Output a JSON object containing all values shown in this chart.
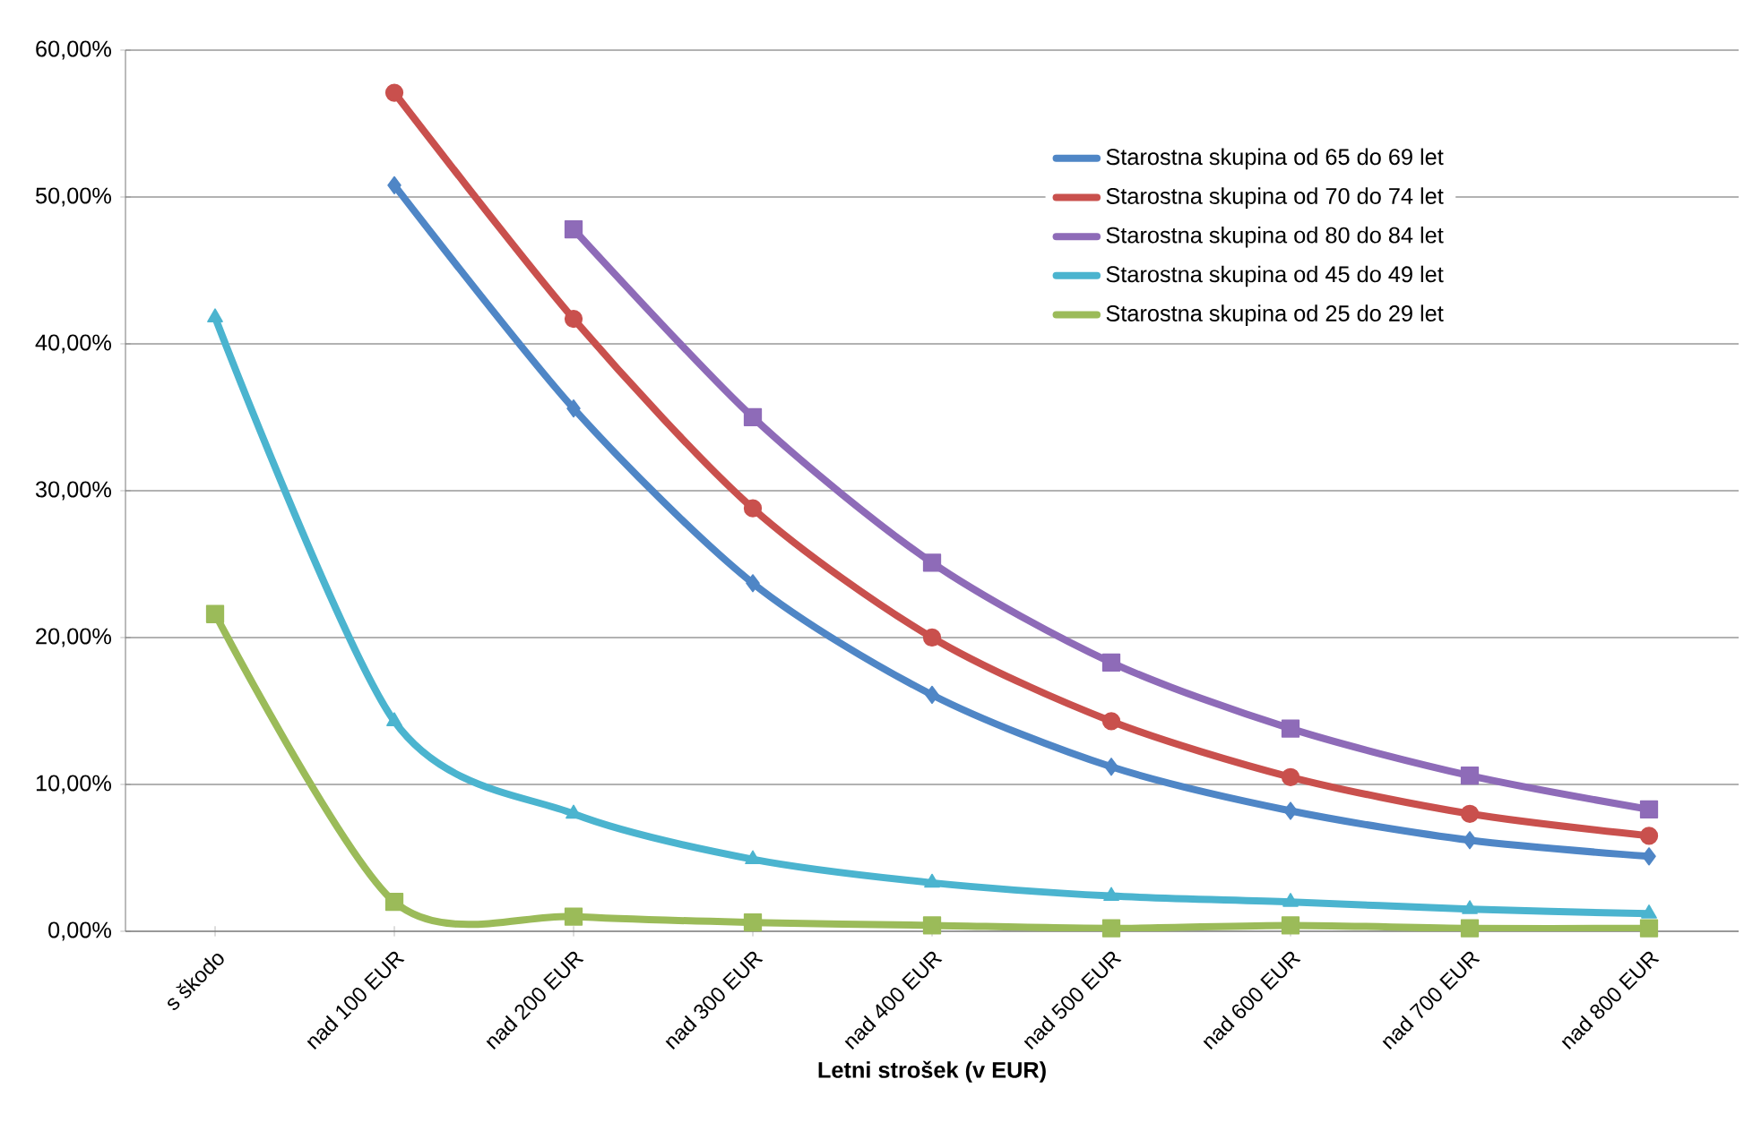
{
  "chart_data": {
    "type": "line",
    "xlabel": "Letni strošek (v EUR)",
    "categories": [
      "s škodo",
      "nad 100 EUR",
      "nad 200 EUR",
      "nad 300 EUR",
      "nad 400 EUR",
      "nad 500 EUR",
      "nad 600 EUR",
      "nad 700 EUR",
      "nad 800 EUR"
    ],
    "series": [
      {
        "name": "Starostna skupina od 65 do 69 let",
        "color": "#4f86c6",
        "marker": "diamond",
        "values": [
          null,
          50.8,
          35.6,
          23.7,
          16.1,
          11.2,
          8.2,
          6.2,
          5.1
        ]
      },
      {
        "name": "Starostna skupina od 70 do 74 let",
        "color": "#c9504d",
        "marker": "circle",
        "values": [
          null,
          57.1,
          41.7,
          28.8,
          20.0,
          14.3,
          10.5,
          8.0,
          6.5
        ]
      },
      {
        "name": "Starostna skupina od 80 do 84 let",
        "color": "#8e6bb8",
        "marker": "square",
        "values": [
          null,
          null,
          47.8,
          35.0,
          25.1,
          18.3,
          13.8,
          10.6,
          8.3
        ]
      },
      {
        "name": "Starostna skupina od 45 do 49 let",
        "color": "#4bb4cf",
        "marker": "triangle",
        "values": [
          41.8,
          14.3,
          8.0,
          4.9,
          3.3,
          2.4,
          2.0,
          1.5,
          1.2
        ]
      },
      {
        "name": "Starostna skupina od 25 do 29 let",
        "color": "#9bbb59",
        "marker": "square",
        "values": [
          21.6,
          2.0,
          1.0,
          0.6,
          0.4,
          0.2,
          0.4,
          0.2,
          0.2
        ]
      }
    ],
    "ylim": [
      0,
      60
    ],
    "yticks": [
      {
        "value": 0,
        "label": "0,00%"
      },
      {
        "value": 10,
        "label": "10,00%"
      },
      {
        "value": 20,
        "label": "20,00%"
      },
      {
        "value": 30,
        "label": "30,00%"
      },
      {
        "value": 40,
        "label": "40,00%"
      },
      {
        "value": 50,
        "label": "50,00%"
      },
      {
        "value": 60,
        "label": "60,00%"
      }
    ],
    "grid": "y",
    "legend": "top right",
    "line_style": "solid"
  }
}
